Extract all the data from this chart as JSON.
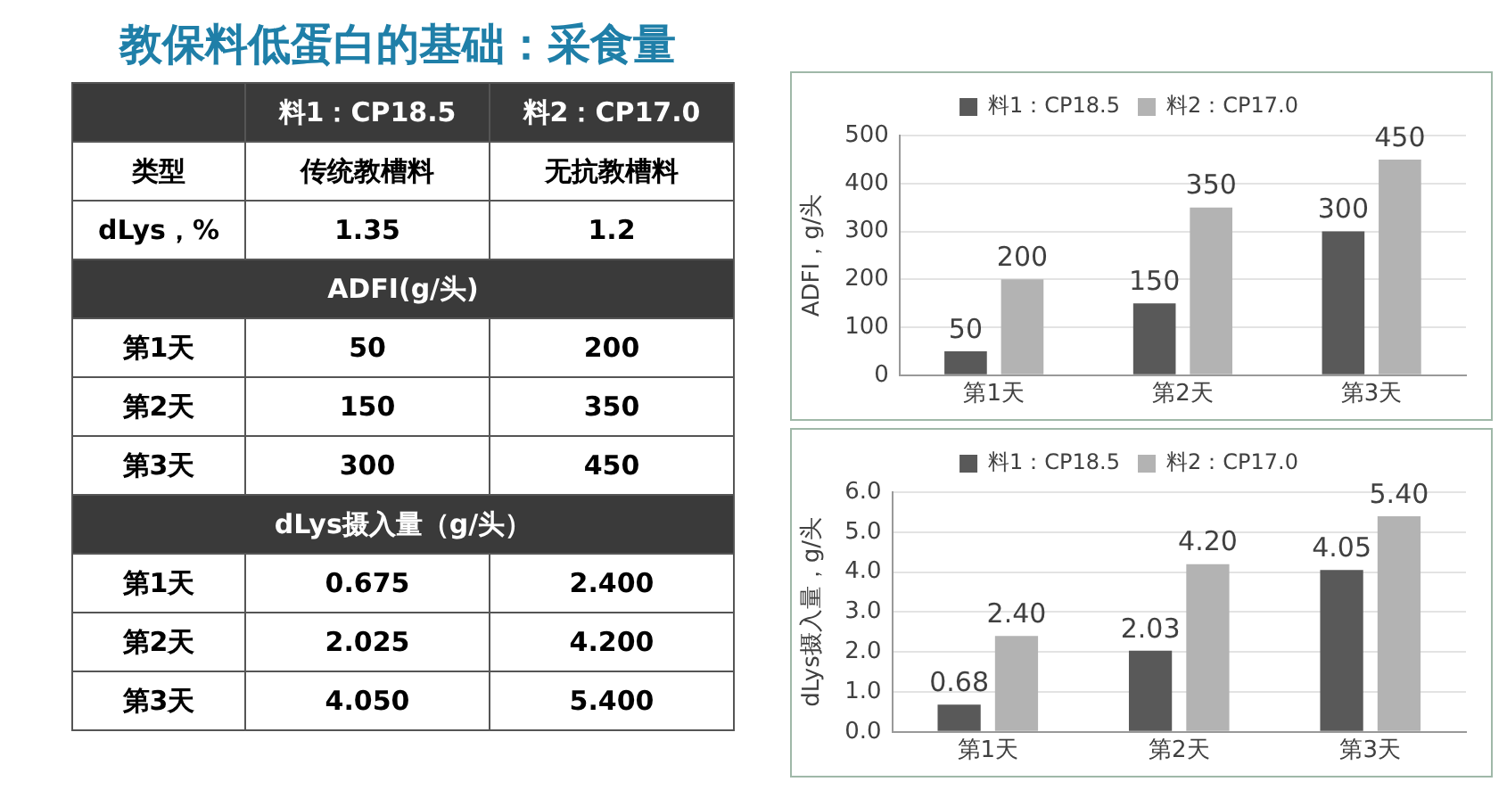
{
  "chart_data": [
    {
      "type": "other",
      "title": "教保料低蛋白的基础：采食量",
      "categories": [
        "料1：CP18.5",
        "料2：CP17.0"
      ],
      "y_categories": [
        "类型",
        "dLys，%",
        "ADFI(g/头)",
        "第1天",
        "第2天",
        "第3天",
        "dLys摄入量（g/头）",
        "第1天",
        "第2天",
        "第3天"
      ],
      "cell_labels": [
        [
          "传统教槽料",
          "无抗教槽料"
        ],
        [
          "1.35",
          "1.2"
        ],
        null,
        [
          "50",
          "200"
        ],
        [
          "150",
          "350"
        ],
        [
          "300",
          "450"
        ],
        null,
        [
          "0.675",
          "2.400"
        ],
        [
          "2.025",
          "4.200"
        ],
        [
          "4.050",
          "5.400"
        ]
      ]
    },
    {
      "type": "bar",
      "categories": [
        "第1天",
        "第2天",
        "第3天"
      ],
      "ylabel": "ADFI，g/头",
      "series": [
        {
          "name": "料1：CP18.5",
          "color": "#595959",
          "values": [
            50,
            150,
            300
          ]
        },
        {
          "name": "料2：CP17.0",
          "color": "#b3b3b3",
          "values": [
            200,
            350,
            450
          ]
        }
      ],
      "ylim": [
        0,
        500
      ],
      "yticks": [
        0,
        100,
        200,
        300,
        400,
        500
      ],
      "grid": "y",
      "legend": "top",
      "data_labels": true
    },
    {
      "type": "bar",
      "categories": [
        "第1天",
        "第2天",
        "第3天"
      ],
      "ylabel": "dLys摄入量，g/头",
      "series": [
        {
          "name": "料1：CP18.5",
          "color": "#595959",
          "values": [
            0.68,
            2.03,
            4.05
          ],
          "value_labels": [
            "0.68",
            "2.03",
            "4.05"
          ]
        },
        {
          "name": "料2：CP17.0",
          "color": "#b3b3b3",
          "values": [
            2.4,
            4.2,
            5.4
          ],
          "value_labels": [
            "2.40",
            "4.20",
            "5.40"
          ]
        }
      ],
      "ylim": [
        0,
        6
      ],
      "yticks": [
        {
          "value": 0,
          "label": "0.0"
        },
        {
          "value": 1,
          "label": "1.0"
        },
        {
          "value": 2,
          "label": "2.0"
        },
        {
          "value": 3,
          "label": "3.0"
        },
        {
          "value": 4,
          "label": "4.0"
        },
        {
          "value": 5,
          "label": "5.0"
        },
        {
          "value": 6,
          "label": "6.0"
        }
      ],
      "grid": "y",
      "legend": "top"
    }
  ]
}
